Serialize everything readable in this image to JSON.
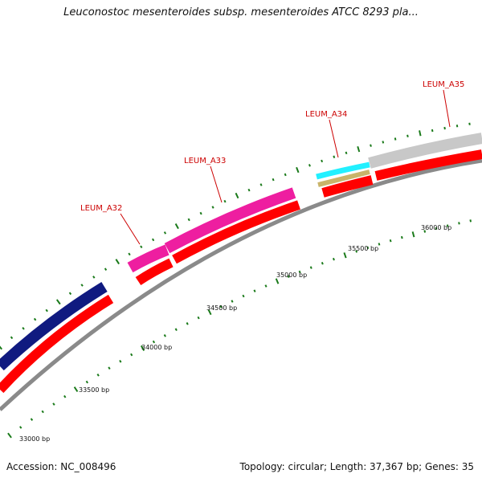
{
  "title": "Leuconostoc mesenteroides subsp. mesenteroides ATCC 8293 pla...",
  "footer": {
    "accession": "Accession: NC_008496",
    "summary": "Topology: circular; Length: 37,367 bp; Genes: 35"
  },
  "genes": [
    {
      "label": "LEUM_A32",
      "color": "#dd1155"
    },
    {
      "label": "LEUM_A33",
      "color": "#dd1155"
    },
    {
      "label": "LEUM_A34",
      "color": "#dd1155"
    },
    {
      "label": "LEUM_A35",
      "color": "#dd1155"
    }
  ],
  "ticks": [
    {
      "label": "33000 bp"
    },
    {
      "label": "33500 bp"
    },
    {
      "label": "34000 bp"
    },
    {
      "label": "34500 bp"
    },
    {
      "label": "35000 bp"
    },
    {
      "label": "35500 bp"
    },
    {
      "label": "36000 bp"
    }
  ],
  "colors": {
    "backbone": "#8a8a8a",
    "cds_red": "#ff0000",
    "navy": "#101a80",
    "magenta": "#ee1ea0",
    "cyan": "#22f0ff",
    "khaki": "#c9b46a",
    "grey": "#c8c8c8",
    "tick_green": "#1a7a1a",
    "label_red": "#cc0000"
  }
}
